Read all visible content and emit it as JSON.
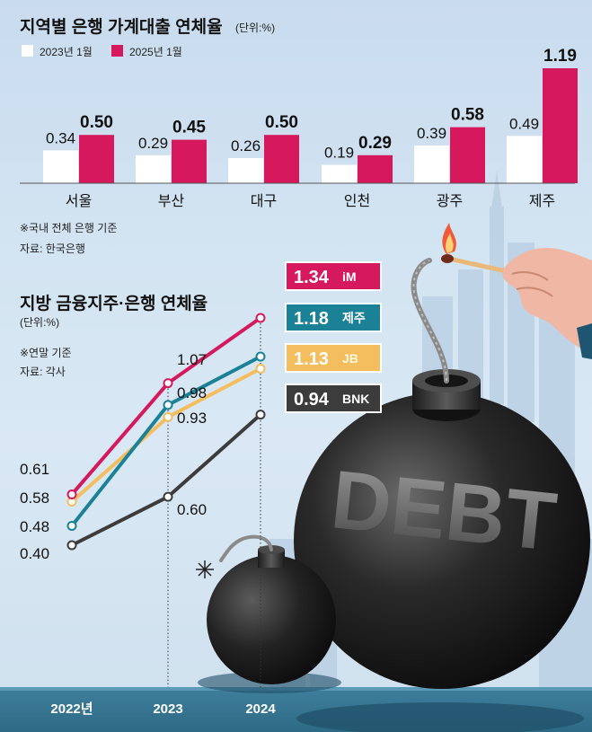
{
  "chart_data": [
    {
      "type": "bar",
      "title": "지역별 은행 가계대출 연체율",
      "unit": "(단위:%)",
      "categories": [
        "서울",
        "부산",
        "대구",
        "인천",
        "광주",
        "제주"
      ],
      "series": [
        {
          "name": "2023년 1월",
          "color": "#ffffff",
          "values": [
            0.34,
            0.29,
            0.26,
            0.19,
            0.39,
            0.49
          ]
        },
        {
          "name": "2025년 1월",
          "color": "#d6195c",
          "values": [
            0.5,
            0.45,
            0.5,
            0.29,
            0.58,
            1.19
          ]
        }
      ],
      "value_labels": [
        [
          "0.34",
          "0.29",
          "0.26",
          "0.19",
          "0.39",
          "0.49"
        ],
        [
          "0.50",
          "0.45",
          "0.50",
          "0.29",
          "0.58",
          "1.19"
        ]
      ],
      "notes": [
        "※국내 전체 은행 기준",
        "자료: 한국은행"
      ],
      "ylim": [
        0,
        1.3
      ],
      "legend": "top-left"
    },
    {
      "type": "line",
      "title": "지방 금융지주·은행 연체율",
      "unit": "(단위:%)",
      "x": [
        "2022년",
        "2023",
        "2024"
      ],
      "series": [
        {
          "name": "iM",
          "color": "#d6195c",
          "values": [
            0.61,
            1.07,
            1.34
          ]
        },
        {
          "name": "제주",
          "color": "#1a8196",
          "values": [
            0.48,
            0.98,
            1.18
          ]
        },
        {
          "name": "JB",
          "color": "#f4bd5e",
          "values": [
            0.58,
            0.93,
            1.13
          ]
        },
        {
          "name": "BNK",
          "color": "#3c3c3c",
          "values": [
            0.4,
            0.6,
            0.94
          ]
        }
      ],
      "end_labels": [
        "1.34",
        "1.18",
        "1.13",
        "0.94"
      ],
      "start_labels": [
        "0.61",
        "0.58",
        "0.48",
        "0.40"
      ],
      "mid_labels": [
        "1.07",
        "0.98",
        "0.93",
        "0.60"
      ],
      "notes": [
        "※연말 기준",
        "자료: 각사"
      ],
      "ylim": [
        0.3,
        1.4
      ]
    }
  ],
  "illustration": {
    "bomb_text": "DEBT"
  }
}
